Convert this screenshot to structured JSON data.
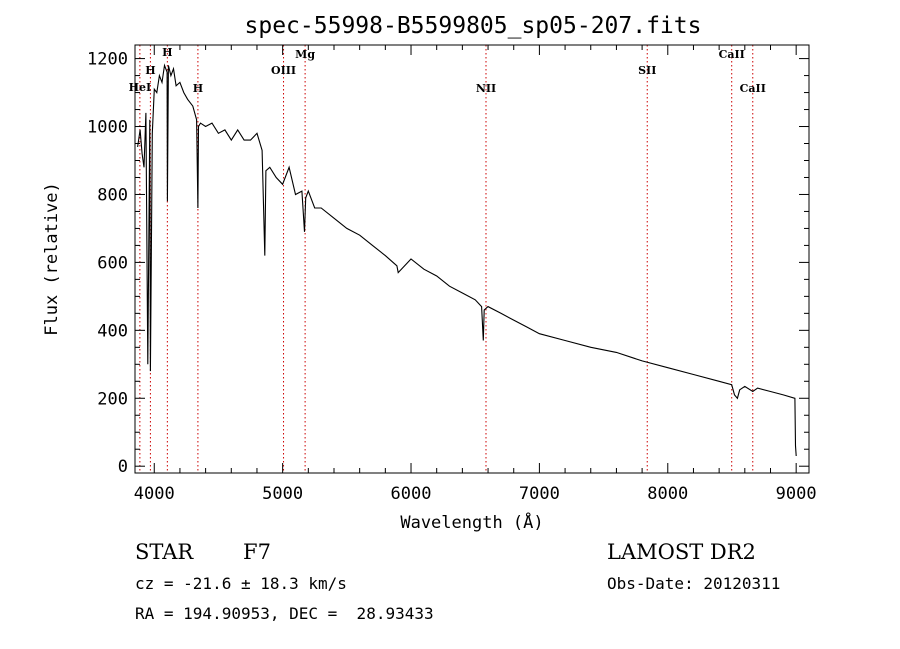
{
  "chart_data": {
    "type": "line",
    "title": "spec-55998-B5599805_sp05-207.fits",
    "xlabel": "Wavelength (Å)",
    "ylabel": "Flux (relative)",
    "xlim": [
      3850,
      9100
    ],
    "ylim": [
      -20,
      1240
    ],
    "xticks": [
      4000,
      5000,
      6000,
      7000,
      8000,
      9000
    ],
    "yticks": [
      0,
      200,
      400,
      600,
      800,
      1000,
      1200
    ],
    "grid": false,
    "series": [
      {
        "x": [
          3870,
          3890,
          3905,
          3920,
          3935,
          3950,
          3965,
          3970,
          3985,
          4000,
          4020,
          4040,
          4060,
          4080,
          4100,
          4102,
          4110,
          4130,
          4150,
          4170,
          4200,
          4230,
          4260,
          4300,
          4330,
          4340,
          4345,
          4360,
          4400,
          4450,
          4500,
          4550,
          4600,
          4650,
          4700,
          4750,
          4800,
          4840,
          4861,
          4870,
          4900,
          4950,
          5000,
          5050,
          5100,
          5150,
          5170,
          5180,
          5200,
          5250,
          5300,
          5400,
          5500,
          5600,
          5700,
          5800,
          5890,
          5900,
          6000,
          6100,
          6200,
          6300,
          6400,
          6500,
          6550,
          6563,
          6570,
          6600,
          6700,
          6800,
          6900,
          7000,
          7200,
          7400,
          7600,
          7800,
          8000,
          8200,
          8400,
          8498,
          8520,
          8542,
          8560,
          8600,
          8662,
          8700,
          8800,
          8900,
          8990,
          8995,
          9000
        ],
        "y": [
          940,
          990,
          920,
          880,
          1040,
          300,
          1020,
          280,
          980,
          1110,
          1100,
          1150,
          1130,
          1180,
          1160,
          780,
          1180,
          1150,
          1170,
          1120,
          1130,
          1100,
          1080,
          1060,
          1020,
          760,
          1000,
          1010,
          1000,
          1010,
          980,
          990,
          960,
          990,
          960,
          960,
          980,
          930,
          620,
          870,
          880,
          850,
          830,
          880,
          800,
          810,
          690,
          790,
          810,
          760,
          760,
          730,
          700,
          680,
          650,
          620,
          590,
          570,
          610,
          580,
          560,
          530,
          510,
          490,
          470,
          370,
          460,
          470,
          450,
          430,
          410,
          390,
          370,
          350,
          335,
          310,
          290,
          270,
          250,
          240,
          210,
          200,
          225,
          235,
          220,
          230,
          220,
          210,
          200,
          60,
          30
        ]
      }
    ],
    "line_markers": [
      {
        "name": "HeI",
        "x": 3888
      },
      {
        "name": "H",
        "x": 3970
      },
      {
        "name": "H",
        "x": 4102
      },
      {
        "name": "H",
        "x": 4340
      },
      {
        "name": "OIII",
        "x": 5007
      },
      {
        "name": "Mg",
        "x": 5175
      },
      {
        "name": "NII",
        "x": 6584
      },
      {
        "name": "SII",
        "x": 7840
      },
      {
        "name": "CaII",
        "x": 8498
      },
      {
        "name": "CaII",
        "x": 8662
      }
    ]
  },
  "info": {
    "object_class": "STAR",
    "subclass": "F7",
    "survey": "LAMOST DR2",
    "redshift": "cz = -21.6 ± 18.3 km/s",
    "obs_date": "Obs-Date: 20120311",
    "coords": "RA = 194.90953, DEC =  28.93433"
  },
  "colors": {
    "spectrum": "#000000",
    "marker_line": "#cc0000"
  }
}
